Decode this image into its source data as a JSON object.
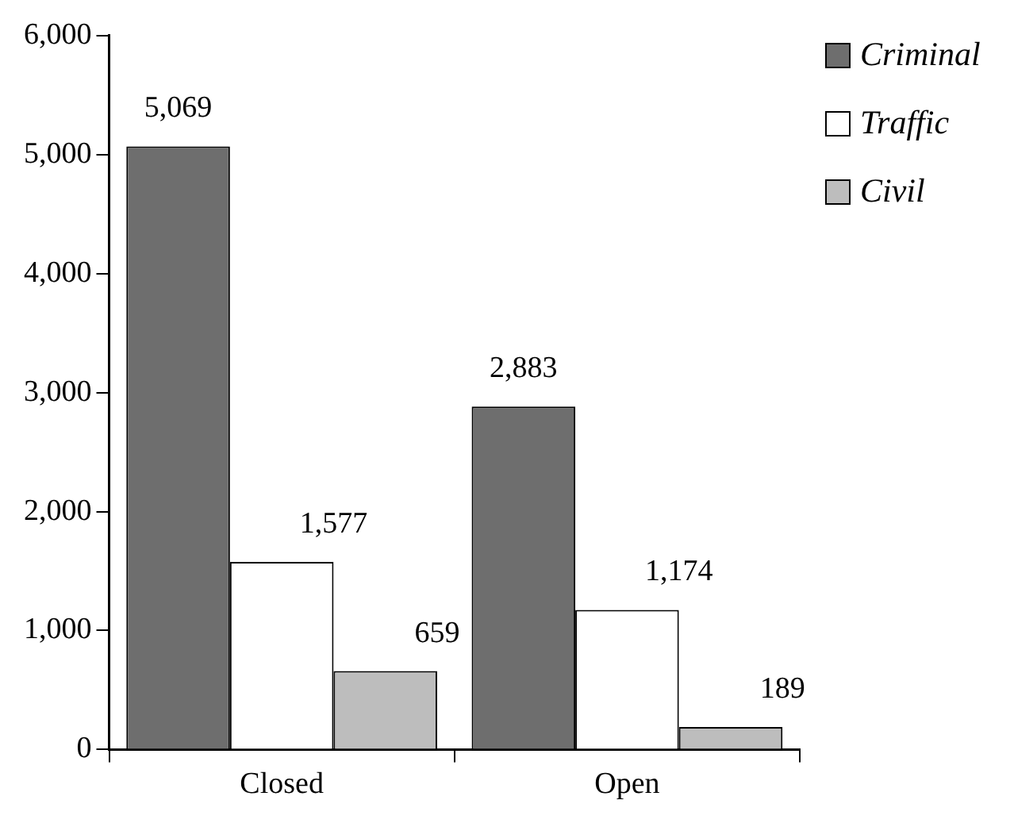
{
  "chart_data": {
    "type": "bar",
    "categories": [
      "Closed",
      "Open"
    ],
    "series": [
      {
        "name": "Criminal",
        "color": "#6e6e6e",
        "values": [
          5069,
          2883
        ],
        "value_labels": [
          "5,069",
          "2,883"
        ]
      },
      {
        "name": "Traffic",
        "color": "#ffffff",
        "values": [
          1577,
          1174
        ],
        "value_labels": [
          "1,577",
          "1,174"
        ]
      },
      {
        "name": "Civil",
        "color": "#bdbdbd",
        "values": [
          659,
          189
        ],
        "value_labels": [
          "659",
          "189"
        ]
      }
    ],
    "ylim": [
      0,
      6000
    ],
    "yticks": [
      0,
      {
        "value": 1000,
        "label": "1,000"
      },
      {
        "value": 2000,
        "label": "2,000"
      },
      {
        "value": 3000,
        "label": "3,000"
      },
      {
        "value": 4000,
        "label": "4,000"
      },
      {
        "value": 5000,
        "label": "5,000"
      },
      {
        "value": 6000,
        "label": "6,000"
      }
    ],
    "grid": false,
    "legend": "top right"
  }
}
